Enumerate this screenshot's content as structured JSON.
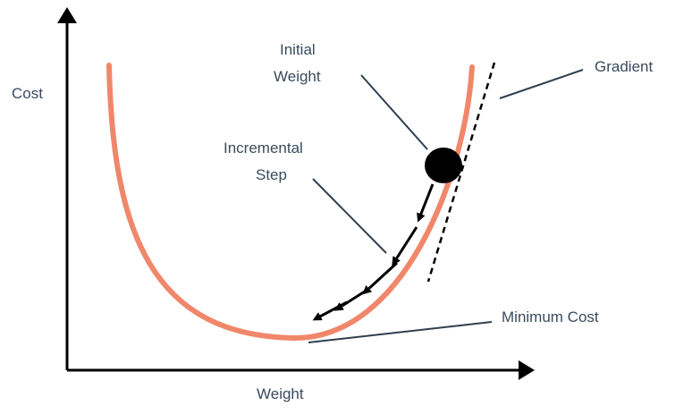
{
  "diagram": {
    "labels": {
      "y_axis": "Cost",
      "x_axis": "Weight",
      "initial_weight_line1": "Initial",
      "initial_weight_line2": "Weight",
      "gradient": "Gradient",
      "incremental_step_line1": "Incremental",
      "incremental_step_line2": "Step",
      "minimum_cost": "Minimum Cost"
    },
    "colors": {
      "curve": "#f0876a",
      "axes": "#000000",
      "leader_lines": "#2f3f4f",
      "text": "#3a4b5c",
      "ball": "#000000"
    }
  }
}
